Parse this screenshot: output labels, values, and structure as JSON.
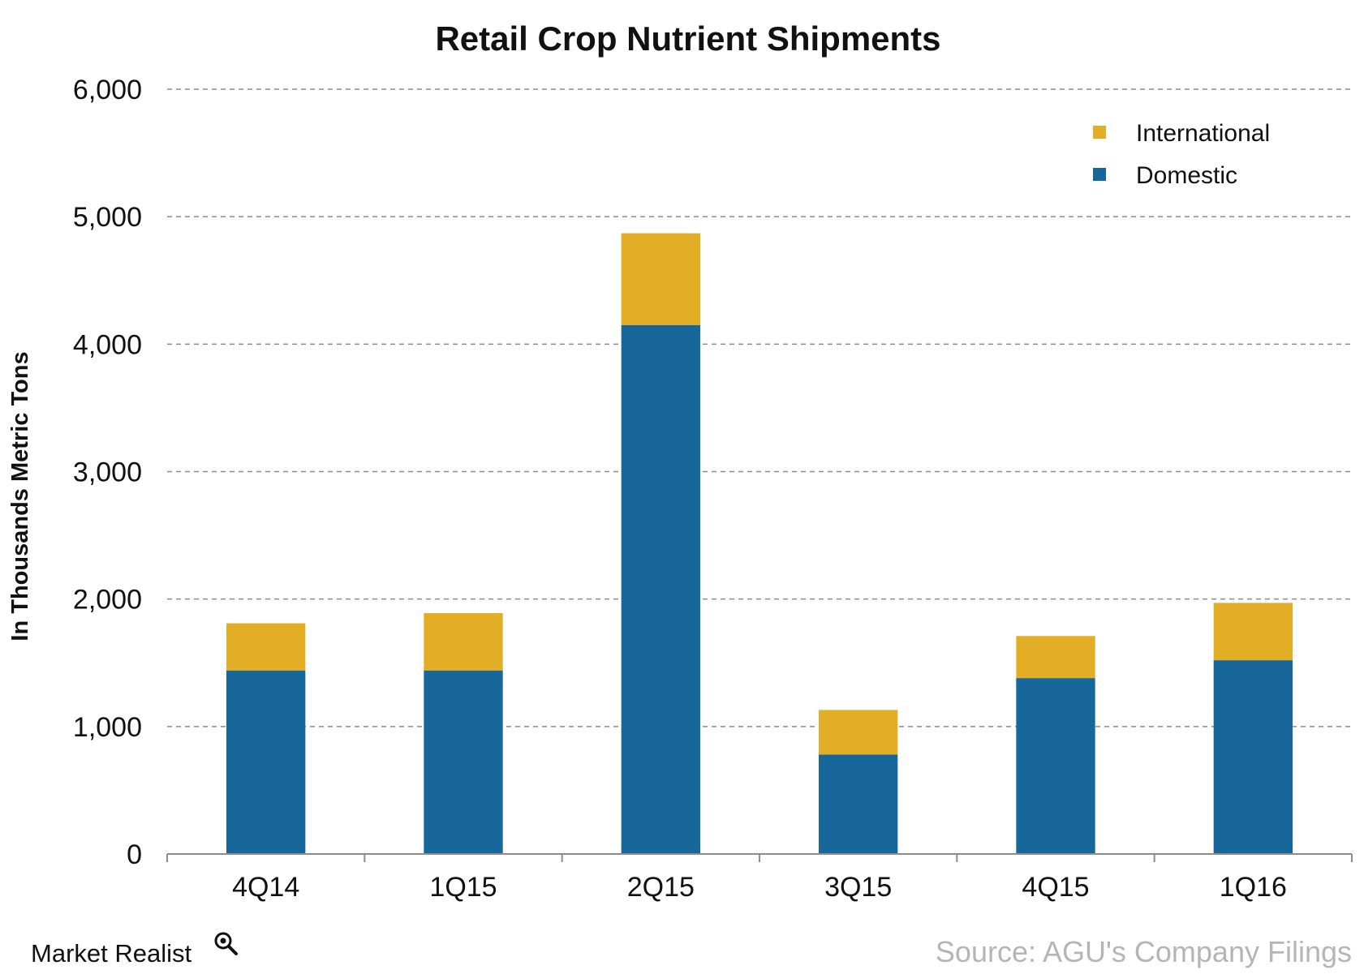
{
  "chart_data": {
    "type": "bar",
    "stacked": true,
    "title": "Retail Crop Nutrient Shipments",
    "xlabel": "",
    "ylabel": "In Thousands Metric Tons",
    "categories": [
      "4Q14",
      "1Q15",
      "2Q15",
      "3Q15",
      "4Q15",
      "1Q16"
    ],
    "series": [
      {
        "name": "Domestic",
        "color": "#17679a",
        "values": [
          1440,
          1440,
          4150,
          780,
          1380,
          1520
        ]
      },
      {
        "name": "International",
        "color": "#e2ae26",
        "values": [
          370,
          450,
          720,
          350,
          330,
          450
        ]
      }
    ],
    "ylim": [
      0,
      6000
    ],
    "yticks": [
      0,
      1000,
      2000,
      3000,
      4000,
      5000,
      6000
    ],
    "ytick_labels": [
      "0",
      "1,000",
      "2,000",
      "3,000",
      "4,000",
      "5,000",
      "6,000"
    ],
    "grid": true,
    "grid_style": "dashed",
    "legend": {
      "position": "top-right",
      "entries": [
        {
          "label": "International",
          "color": "#e2ae26"
        },
        {
          "label": "Domestic",
          "color": "#17679a"
        }
      ]
    }
  },
  "footer": {
    "brand": "Market Realist",
    "brand_icon": "magnifier-icon",
    "source": "Source: AGU's Company Filings"
  }
}
